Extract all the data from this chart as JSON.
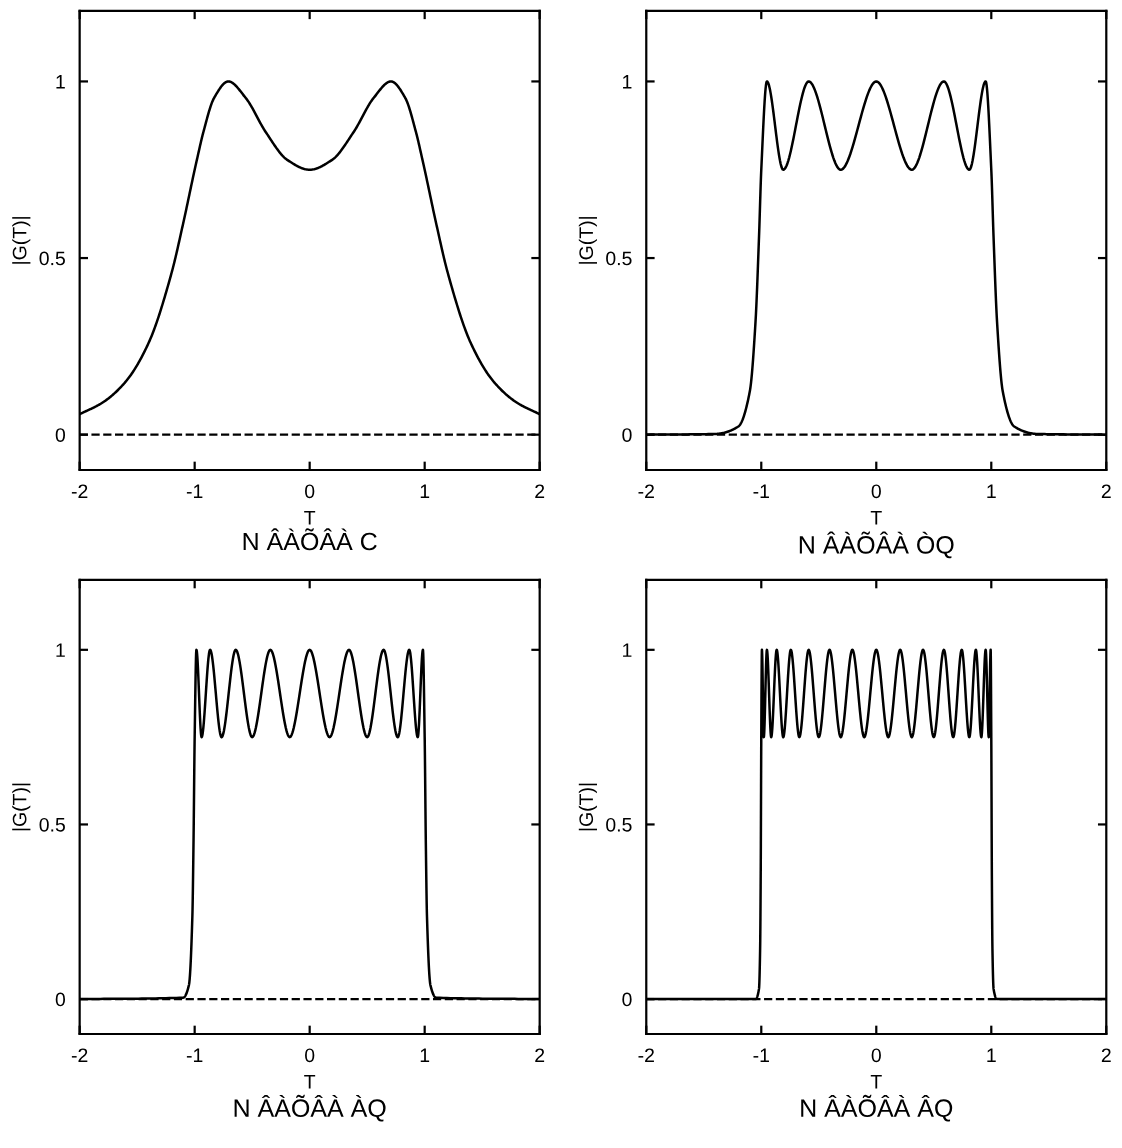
{
  "chart_data": [
    {
      "type": "line",
      "xlabel": "T",
      "ylabel": "|G(T)|",
      "annotations": [
        "N ÂÀÕÂÀ C"
      ],
      "xlim": [
        -2,
        2
      ],
      "ylim": [
        -0.1,
        1.2
      ],
      "xticks": [
        -2,
        -1,
        0,
        1,
        2
      ],
      "yticks": [
        0,
        0.5,
        1
      ],
      "grid": false,
      "legend": false,
      "ref_lines": [
        {
          "axis": "y",
          "value": 0,
          "line_style": "dashed",
          "color": "#000000"
        }
      ],
      "series": [
        {
          "color": "#000000",
          "x": [
            -2,
            -1.8,
            -1.6,
            -1.4,
            -1.2,
            -1.1,
            -1,
            -0.9808,
            -0.9239,
            -0.8315,
            -0.7071,
            -0.5556,
            -0.3827,
            -0.1951,
            0,
            0.1951,
            0.3827,
            0.5556,
            0.7071,
            0.8315,
            0.9239,
            0.9808,
            1,
            1.1,
            1.2,
            1.4,
            1.6,
            1.8,
            2
          ],
          "values": [
            0.058,
            0.091,
            0.15,
            0.26,
            0.459,
            0.598,
            0.75,
            0.778,
            0.857,
            0.953,
            1,
            0.953,
            0.857,
            0.778,
            0.75,
            0.778,
            0.857,
            0.953,
            1,
            0.953,
            0.857,
            0.778,
            0.75,
            0.598,
            0.459,
            0.26,
            0.15,
            0.091,
            0.058
          ]
        }
      ]
    },
    {
      "type": "line",
      "xlabel": "T",
      "ylabel": "|G(T)|",
      "annotations": [
        "N ÂÀÕÂÀ ÒQ"
      ],
      "xlim": [
        -2,
        2
      ],
      "ylim": [
        -0.1,
        1.2
      ],
      "xticks": [
        -2,
        -1,
        0,
        1,
        2
      ],
      "yticks": [
        0,
        0.5,
        1
      ],
      "grid": false,
      "legend": false,
      "ref_lines": [
        {
          "axis": "y",
          "value": 0,
          "line_style": "dashed",
          "color": "#000000"
        }
      ],
      "series": [
        {
          "color": "#000000",
          "x": [
            -2,
            -1.4,
            -1.2,
            -1.1,
            -1.05,
            -1.02,
            -1,
            -0.9511,
            -0.809,
            -0.5878,
            -0.309,
            0,
            0.309,
            0.5878,
            0.809,
            0.9511,
            1,
            1.02,
            1.05,
            1.1,
            1.2,
            1.4,
            2
          ],
          "values": [
            0,
            0.002,
            0.023,
            0.122,
            0.32,
            0.557,
            0.75,
            1,
            0.75,
            1,
            0.75,
            1,
            0.75,
            1,
            0.75,
            1,
            0.75,
            0.557,
            0.32,
            0.122,
            0.023,
            0.002,
            0
          ]
        }
      ]
    },
    {
      "type": "line",
      "xlabel": "T",
      "ylabel": "|G(T)|",
      "annotations": [
        "N ÂÀÕÂÀ ÀQ"
      ],
      "xlim": [
        -2,
        2
      ],
      "ylim": [
        -0.1,
        1.2
      ],
      "xticks": [
        -2,
        -1,
        0,
        1,
        2
      ],
      "yticks": [
        0,
        0.5,
        1
      ],
      "grid": false,
      "legend": false,
      "ref_lines": [
        {
          "axis": "y",
          "value": 0,
          "line_style": "dashed",
          "color": "#000000"
        }
      ],
      "series": [
        {
          "color": "#000000",
          "x": [
            -2,
            -1.1,
            -1.05,
            -1.02,
            -1.01,
            -1,
            -0.9848,
            -0.9397,
            -0.866,
            -0.766,
            -0.6428,
            -0.5,
            -0.342,
            -0.1736,
            0,
            0.1736,
            0.342,
            0.5,
            0.6428,
            0.766,
            0.866,
            0.9397,
            0.9848,
            1,
            1.01,
            1.02,
            1.05,
            1.1,
            2
          ],
          "values": [
            0,
            0.004,
            0.04,
            0.237,
            0.448,
            0.75,
            1,
            0.75,
            1,
            0.75,
            1,
            0.75,
            1,
            0.75,
            1,
            0.75,
            1,
            0.75,
            1,
            0.75,
            1,
            0.75,
            1,
            0.75,
            0.448,
            0.237,
            0.04,
            0.004,
            0
          ]
        }
      ]
    },
    {
      "type": "line",
      "xlabel": "T",
      "ylabel": "|G(T)|",
      "annotations": [
        "N ÂÀÕÂÀ ÂQ"
      ],
      "xlim": [
        -2,
        2
      ],
      "ylim": [
        -0.1,
        1.2
      ],
      "xticks": [
        -2,
        -1,
        0,
        1,
        2
      ],
      "yticks": [
        0,
        0.5,
        1
      ],
      "grid": false,
      "legend": false,
      "ref_lines": [
        {
          "axis": "y",
          "value": 0,
          "line_style": "dashed",
          "color": "#000000"
        }
      ],
      "series": [
        {
          "color": "#000000",
          "x": [
            -2,
            -1.05,
            -1.02,
            -1.01,
            -1.005,
            -1,
            -0.9945,
            -0.9781,
            -0.9511,
            -0.9135,
            -0.866,
            -0.809,
            -0.7431,
            -0.6691,
            -0.5878,
            -0.5,
            -0.4067,
            -0.309,
            -0.2079,
            -0.1045,
            0,
            0.1045,
            0.2079,
            0.309,
            0.4067,
            0.5,
            0.5878,
            0.6691,
            0.7431,
            0.809,
            0.866,
            0.9135,
            0.9511,
            0.9781,
            0.9945,
            1,
            1.005,
            1.01,
            1.02,
            1.05,
            2
          ],
          "values": [
            0,
            0,
            0.029,
            0.144,
            0.352,
            0.75,
            1,
            0.75,
            1,
            0.75,
            1,
            0.75,
            1,
            0.75,
            1,
            0.75,
            1,
            0.75,
            1,
            0.75,
            1,
            0.75,
            1,
            0.75,
            1,
            0.75,
            1,
            0.75,
            1,
            0.75,
            1,
            0.75,
            1,
            0.75,
            1,
            0.75,
            0.352,
            0.144,
            0.029,
            0,
            0
          ]
        }
      ]
    }
  ]
}
